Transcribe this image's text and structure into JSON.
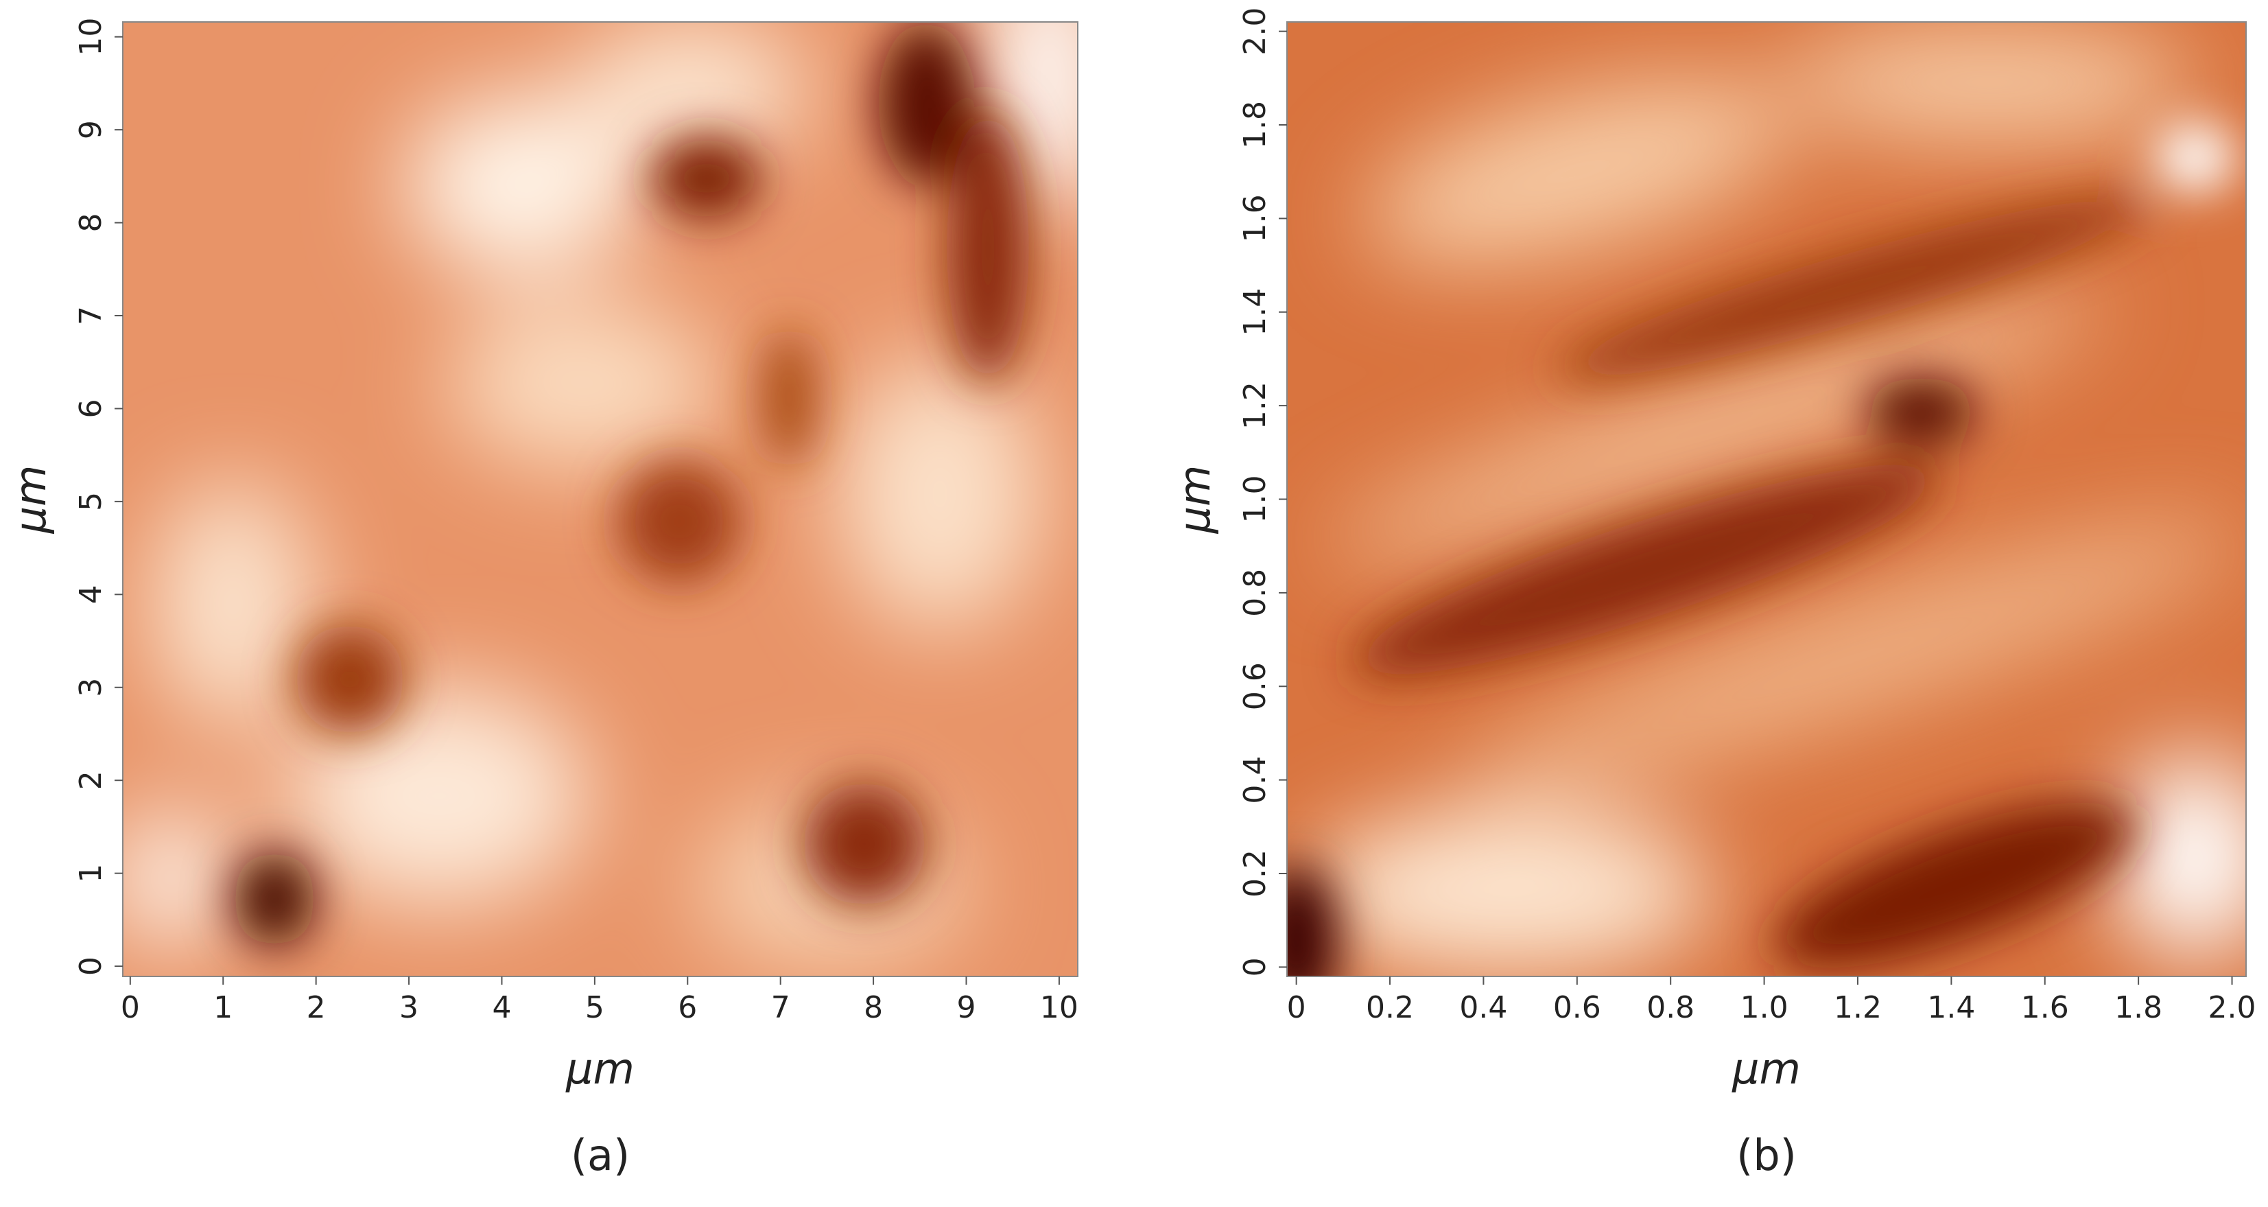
{
  "chart_data": [
    {
      "type": "image",
      "caption": "(a)",
      "xlabel": "μm",
      "ylabel": "μm",
      "xlim": [
        -0.08,
        10.2
      ],
      "ylim": [
        -0.11,
        10.16
      ],
      "xticks": [
        0,
        1,
        2,
        3,
        4,
        5,
        6,
        7,
        8,
        9,
        10
      ],
      "yticks": [
        0,
        1,
        2,
        3,
        4,
        5,
        6,
        7,
        8,
        9,
        10
      ]
    },
    {
      "type": "image",
      "caption": "(b)",
      "xlabel": "μm",
      "ylabel": "μm",
      "xlim": [
        -0.02,
        2.03
      ],
      "ylim": [
        -0.02,
        2.02
      ],
      "xticks": [
        0,
        0.2,
        0.4,
        0.6,
        0.8,
        {
          "value": 1,
          "label": "1.0"
        },
        1.2,
        1.4,
        1.6,
        1.8,
        {
          "value": 2,
          "label": "2.0"
        }
      ],
      "yticks": [
        0,
        0.2,
        0.4,
        0.6,
        0.8,
        {
          "value": 1,
          "label": "1.0"
        },
        1.2,
        1.4,
        1.6,
        1.8,
        {
          "value": 2,
          "label": "2.0"
        }
      ]
    }
  ]
}
